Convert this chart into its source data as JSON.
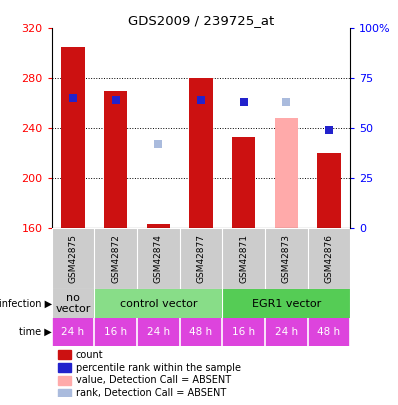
{
  "title": "GDS2009 / 239725_at",
  "samples": [
    "GSM42875",
    "GSM42872",
    "GSM42874",
    "GSM42877",
    "GSM42871",
    "GSM42873",
    "GSM42876"
  ],
  "bar_values": [
    305,
    270,
    163,
    280,
    233,
    248,
    220
  ],
  "bar_absent": [
    false,
    false,
    false,
    false,
    false,
    true,
    false
  ],
  "rank_values": [
    65,
    64,
    42,
    64,
    63,
    63,
    49
  ],
  "rank_absent": [
    false,
    false,
    true,
    false,
    false,
    true,
    false
  ],
  "ylim": [
    160,
    320
  ],
  "yticks": [
    160,
    200,
    240,
    280,
    320
  ],
  "right_yticks": [
    0,
    25,
    50,
    75,
    100
  ],
  "right_ylim": [
    0,
    100
  ],
  "infection_groups": [
    {
      "label": "no\nvector",
      "start": 0,
      "end": 1,
      "color": "#cccccc"
    },
    {
      "label": "control vector",
      "start": 1,
      "end": 4,
      "color": "#88dd88"
    },
    {
      "label": "EGR1 vector",
      "start": 4,
      "end": 7,
      "color": "#55cc55"
    }
  ],
  "time_labels": [
    "24 h",
    "16 h",
    "24 h",
    "48 h",
    "16 h",
    "24 h",
    "48 h"
  ],
  "time_color": "#dd44dd",
  "bar_color_present": "#cc1111",
  "bar_color_absent": "#ffaaaa",
  "rank_color_present": "#2222cc",
  "rank_color_absent": "#aabbdd",
  "sample_bg_color": "#cccccc",
  "bar_width": 0.55,
  "rank_marker_size": 6,
  "legend_items": [
    {
      "color": "#cc1111",
      "label": "count"
    },
    {
      "color": "#2222cc",
      "label": "percentile rank within the sample"
    },
    {
      "color": "#ffaaaa",
      "label": "value, Detection Call = ABSENT"
    },
    {
      "color": "#aabbdd",
      "label": "rank, Detection Call = ABSENT"
    }
  ]
}
